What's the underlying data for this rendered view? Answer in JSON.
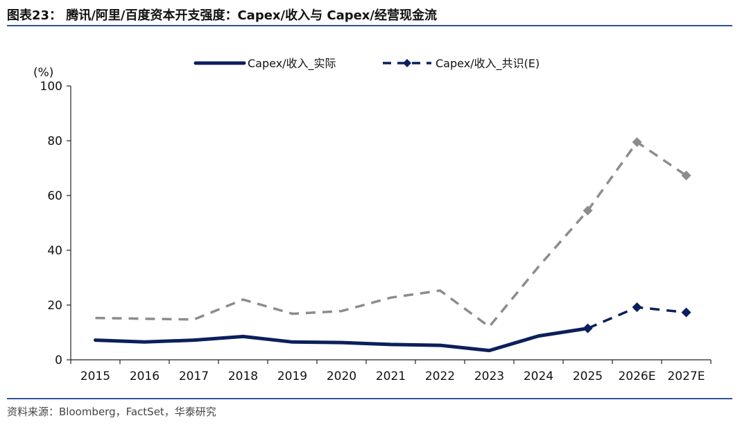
{
  "figure": {
    "title": "图表23： 腾讯/阿里/百度资本开支强度：Capex/收入与 Capex/经营现金流",
    "source": "资料来源：Bloomberg，FactSet，华泰研究"
  },
  "chart_data": {
    "type": "line",
    "unit_label": "(%)",
    "categories": [
      "2015",
      "2016",
      "2017",
      "2018",
      "2019",
      "2020",
      "2021",
      "2022",
      "2023",
      "2024",
      "2025",
      "2026E",
      "2027E"
    ],
    "ylim": [
      0,
      100
    ],
    "yticks": [
      0,
      20,
      40,
      60,
      80,
      100
    ],
    "grid": false,
    "legend_position": "top",
    "series": [
      {
        "name": "Capex/收入_实际",
        "color": "#0b1f5c",
        "style": "solid",
        "values": [
          7.2,
          6.5,
          7.2,
          8.5,
          6.5,
          6.3,
          5.6,
          5.3,
          3.4,
          8.7,
          11.5,
          null,
          null
        ]
      },
      {
        "name": "Capex/收入_共识(E)",
        "color": "#0b1f5c",
        "style": "dashed-diamond",
        "values": [
          null,
          null,
          null,
          null,
          null,
          null,
          null,
          null,
          null,
          null,
          11.5,
          19.2,
          17.3
        ]
      },
      {
        "color": "#8c8c8c",
        "style": "dashed",
        "values": [
          15.3,
          15.0,
          14.7,
          22.0,
          16.8,
          17.8,
          22.7,
          25.3,
          12.1,
          34.0,
          54.5,
          79.5,
          67.3
        ]
      }
    ]
  }
}
